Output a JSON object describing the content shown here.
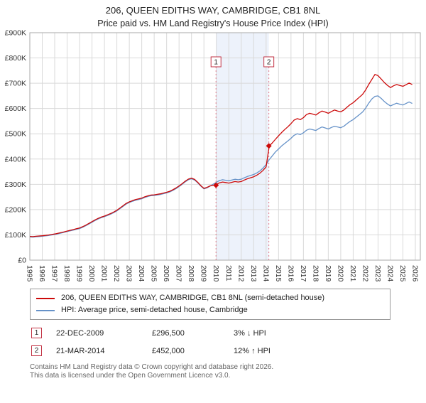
{
  "header": {
    "title": "206, QUEEN EDITHS WAY, CAMBRIDGE, CB1 8NL",
    "subtitle": "Price paid vs. HM Land Registry's House Price Index (HPI)"
  },
  "chart_data": {
    "type": "line",
    "title": "206, QUEEN EDITHS WAY, CAMBRIDGE, CB1 8NL",
    "subtitle": "Price paid vs. HM Land Registry's House Price Index (HPI)",
    "ylim": [
      0,
      900000
    ],
    "y_tick_step": 100000,
    "y_tick_labels": [
      "£0",
      "£100K",
      "£200K",
      "£300K",
      "£400K",
      "£500K",
      "£600K",
      "£700K",
      "£800K",
      "£900K"
    ],
    "x_start": 1995,
    "x_end": 2026.4,
    "x_years": [
      1995,
      1996,
      1997,
      1998,
      1999,
      2000,
      2001,
      2002,
      2003,
      2004,
      2005,
      2006,
      2007,
      2008,
      2009,
      2010,
      2011,
      2012,
      2013,
      2014,
      2015,
      2016,
      2017,
      2018,
      2019,
      2020,
      2021,
      2022,
      2023,
      2024,
      2025,
      2026
    ],
    "x_first": 1995.0,
    "x_step": 0.25,
    "grid": true,
    "legend_position": "bottom",
    "colors": {
      "grid": "#d9d9d9",
      "border": "#aaaaaa",
      "marker_line": "#e07a8a",
      "shading": "#edf2fb"
    },
    "shaded_region": {
      "x1": 2009.97,
      "x2": 2014.22,
      "color": "#edf2fb"
    },
    "sale_markers": [
      {
        "label": "1",
        "x": 2009.97,
        "y": 296500
      },
      {
        "label": "2",
        "x": 2014.22,
        "y": 452000
      }
    ],
    "series": [
      {
        "name": "206, QUEEN EDITHS WAY, CAMBRIDGE, CB1 8NL (semi-detached house)",
        "color": "#cc0a0a",
        "values": [
          94000,
          93000,
          94500,
          95500,
          96500,
          98000,
          99500,
          101500,
          103500,
          106000,
          109000,
          112000,
          115000,
          118000,
          121000,
          124500,
          127500,
          132500,
          138500,
          145500,
          152500,
          159500,
          165500,
          170500,
          174500,
          179500,
          184500,
          190500,
          197500,
          206500,
          215500,
          224500,
          230500,
          235500,
          239500,
          242500,
          245500,
          250500,
          254500,
          257500,
          258500,
          260500,
          262500,
          265500,
          268500,
          272500,
          278500,
          285500,
          293500,
          302500,
          312500,
          320500,
          324500,
          319500,
          308000,
          295000,
          284000,
          288000,
          294000,
          296500,
          299000,
          306000,
          309000,
          307000,
          305000,
          308000,
          311000,
          309000,
          311000,
          317000,
          322000,
          326000,
          330000,
          336000,
          344000,
          355000,
          369000,
          452000,
          464000,
          478000,
          492000,
          505000,
          517000,
          528000,
          540000,
          554000,
          560000,
          556000,
          564000,
          576000,
          581000,
          578000,
          574000,
          583000,
          590000,
          586000,
          581000,
          588000,
          594000,
          590000,
          587000,
          594000,
          605000,
          615000,
          623000,
          634000,
          645000,
          656000,
          673000,
          695000,
          715000,
          735000,
          730000,
          717000,
          703000,
          692000,
          683000,
          690000,
          695000,
          691000,
          688000,
          694000,
          701000,
          695000
        ]
      },
      {
        "name": "HPI: Average price, semi-detached house, Cambridge",
        "color": "#6692c8",
        "values": [
          92000,
          91000,
          92500,
          93500,
          94500,
          96000,
          97500,
          99500,
          101500,
          104000,
          107000,
          110000,
          113000,
          116000,
          119000,
          122000,
          125000,
          130000,
          136000,
          143000,
          150000,
          157000,
          163000,
          168000,
          172000,
          177000,
          182000,
          188000,
          195000,
          204000,
          213000,
          222000,
          228000,
          233000,
          237000,
          240000,
          243000,
          248000,
          252000,
          255000,
          256000,
          258000,
          260000,
          263000,
          266000,
          270000,
          276000,
          283000,
          291000,
          300000,
          310000,
          318000,
          322000,
          317000,
          306000,
          293000,
          282000,
          286000,
          293000,
          301000,
          308000,
          315000,
          318000,
          316000,
          314000,
          317000,
          320000,
          318000,
          320000,
          326000,
          331000,
          335000,
          339000,
          345000,
          353000,
          364000,
          378000,
          398000,
          413000,
          428000,
          440000,
          452000,
          462000,
          472000,
          482000,
          494000,
          500000,
          497000,
          504000,
          514000,
          519000,
          516000,
          513000,
          521000,
          527000,
          523000,
          519000,
          525000,
          530000,
          527000,
          524000,
          530000,
          540000,
          549000,
          556000,
          566000,
          576000,
          586000,
          601000,
          621000,
          638000,
          648000,
          650000,
          640000,
          628000,
          618000,
          610000,
          616000,
          621000,
          617000,
          614000,
          620000,
          626000,
          620000
        ]
      }
    ]
  },
  "transactions": [
    {
      "num": "1",
      "date": "22-DEC-2009",
      "price": "£296,500",
      "hpi_delta": "3% ↓ HPI"
    },
    {
      "num": "2",
      "date": "21-MAR-2014",
      "price": "£452,000",
      "hpi_delta": "12% ↑ HPI"
    }
  ],
  "footer": {
    "line1": "Contains HM Land Registry data © Crown copyright and database right 2026.",
    "line2": "This data is licensed under the Open Government Licence v3.0."
  }
}
